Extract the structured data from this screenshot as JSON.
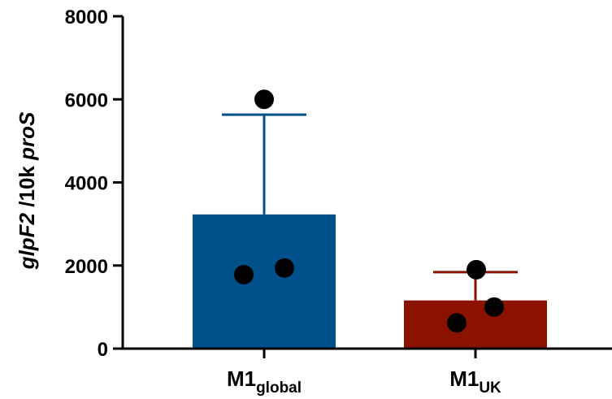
{
  "chart_data": {
    "type": "bar",
    "ylabel_parts": [
      {
        "text": "glpF2",
        "italic": true
      },
      {
        "text": " /10k ",
        "italic": false
      },
      {
        "text": "proS",
        "italic": true
      }
    ],
    "ylim": [
      0,
      8000
    ],
    "yticks": [
      0,
      2000,
      4000,
      6000,
      8000
    ],
    "ytick_labels": [
      "0",
      "2000",
      "4000",
      "6000",
      "8000"
    ],
    "categories": [
      {
        "main": "M1",
        "sub": "global",
        "value": 3230,
        "error_upper": 5630,
        "color": "#00508c",
        "points": [
          1780,
          1940,
          6000
        ]
      },
      {
        "main": "M1",
        "sub": "UK",
        "value": 1160,
        "error_upper": 1840,
        "color": "#8c1200",
        "points": [
          620,
          1000,
          1900
        ]
      }
    ],
    "grid": false
  }
}
